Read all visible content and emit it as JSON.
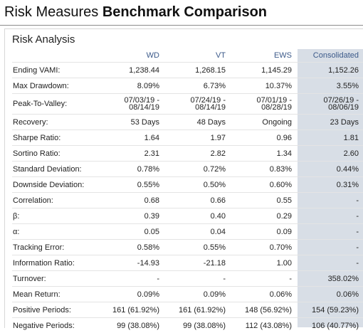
{
  "page": {
    "title_regular": "Risk Measures",
    "title_bold": "Benchmark Comparison"
  },
  "panel": {
    "title": "Risk Analysis"
  },
  "table": {
    "columns": [
      "WD",
      "VT",
      "EWS",
      "Consolidated"
    ],
    "rows": [
      {
        "label": "Ending VAMI:",
        "wd": "1,238.44",
        "vt": "1,268.15",
        "ews": "1,145.29",
        "cons": "1,152.26"
      },
      {
        "label": "Max Drawdown:",
        "wd": "8.09%",
        "vt": "6.73%",
        "ews": "10.37%",
        "cons": "3.55%"
      },
      {
        "label": "Peak-To-Valley:",
        "wd": "07/03/19 -",
        "wd2": "08/14/19",
        "vt": "07/24/19 -",
        "vt2": "08/14/19",
        "ews": "07/01/19 -",
        "ews2": "08/28/19",
        "cons": "07/26/19 -",
        "cons2": "08/06/19"
      },
      {
        "label": "Recovery:",
        "wd": "53 Days",
        "vt": "48 Days",
        "ews": "Ongoing",
        "cons": "23 Days"
      },
      {
        "label": "Sharpe Ratio:",
        "wd": "1.64",
        "vt": "1.97",
        "ews": "0.96",
        "cons": "1.81"
      },
      {
        "label": "Sortino Ratio:",
        "wd": "2.31",
        "vt": "2.82",
        "ews": "1.34",
        "cons": "2.60"
      },
      {
        "label": "Standard Deviation:",
        "wd": "0.78%",
        "vt": "0.72%",
        "ews": "0.83%",
        "cons": "0.44%"
      },
      {
        "label": "Downside Deviation:",
        "wd": "0.55%",
        "vt": "0.50%",
        "ews": "0.60%",
        "cons": "0.31%"
      },
      {
        "label": "Correlation:",
        "wd": "0.68",
        "vt": "0.66",
        "ews": "0.55",
        "cons": "-"
      },
      {
        "label": "β:",
        "wd": "0.39",
        "vt": "0.40",
        "ews": "0.29",
        "cons": "-"
      },
      {
        "label": "α:",
        "wd": "0.05",
        "vt": "0.04",
        "ews": "0.09",
        "cons": "-"
      },
      {
        "label": "Tracking Error:",
        "wd": "0.58%",
        "vt": "0.55%",
        "ews": "0.70%",
        "cons": "-"
      },
      {
        "label": "Information Ratio:",
        "wd": "-14.93",
        "vt": "-21.18",
        "ews": "1.00",
        "cons": "-"
      },
      {
        "label": "Turnover:",
        "wd": "-",
        "vt": "-",
        "ews": "-",
        "cons": "358.02%"
      },
      {
        "label": "Mean Return:",
        "wd": "0.09%",
        "vt": "0.09%",
        "ews": "0.06%",
        "cons": "0.06%"
      },
      {
        "label": "Positive Periods:",
        "wd": "161 (61.92%)",
        "vt": "161 (61.92%)",
        "ews": "148 (56.92%)",
        "cons": "154 (59.23%)"
      },
      {
        "label": "Negative Periods:",
        "wd": "99 (38.08%)",
        "vt": "99 (38.08%)",
        "ews": "112 (43.08%)",
        "cons": "106 (40.77%)"
      }
    ]
  },
  "colors": {
    "header_text": "#3c5a8a",
    "consolidated_bg": "#d8dee6"
  }
}
